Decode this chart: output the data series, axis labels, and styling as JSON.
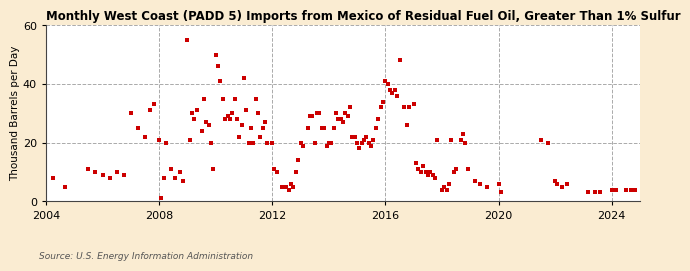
{
  "title": "Monthly West Coast (PADD 5) Imports from Mexico of Residual Fuel Oil, Greater Than 1% Sulfur",
  "ylabel": "Thousand Barrels per Day",
  "source": "Source: U.S. Energy Information Administration",
  "background_color": "#faecd2",
  "plot_background": "#ffffff",
  "marker_color": "#cc0000",
  "xlim": [
    2004,
    2025
  ],
  "ylim": [
    0,
    60
  ],
  "yticks": [
    0,
    20,
    40,
    60
  ],
  "xticks": [
    2004,
    2008,
    2012,
    2016,
    2020,
    2024
  ],
  "data_x": [
    2004.25,
    2004.67,
    2005.5,
    2005.75,
    2006.0,
    2006.25,
    2006.5,
    2006.75,
    2007.0,
    2007.25,
    2007.5,
    2007.67,
    2007.83,
    2008.0,
    2008.08,
    2008.17,
    2008.25,
    2008.42,
    2008.58,
    2008.75,
    2008.83,
    2009.0,
    2009.08,
    2009.17,
    2009.25,
    2009.33,
    2009.5,
    2009.58,
    2009.67,
    2009.75,
    2009.83,
    2009.92,
    2010.0,
    2010.08,
    2010.17,
    2010.25,
    2010.33,
    2010.42,
    2010.5,
    2010.58,
    2010.67,
    2010.75,
    2010.83,
    2010.92,
    2011.0,
    2011.08,
    2011.17,
    2011.25,
    2011.33,
    2011.42,
    2011.5,
    2011.58,
    2011.67,
    2011.75,
    2011.83,
    2012.0,
    2012.08,
    2012.17,
    2012.33,
    2012.5,
    2012.58,
    2012.67,
    2012.75,
    2012.83,
    2012.92,
    2013.0,
    2013.08,
    2013.25,
    2013.33,
    2013.42,
    2013.5,
    2013.58,
    2013.67,
    2013.75,
    2013.83,
    2013.92,
    2014.0,
    2014.08,
    2014.17,
    2014.25,
    2014.33,
    2014.42,
    2014.5,
    2014.58,
    2014.67,
    2014.75,
    2014.83,
    2014.92,
    2015.0,
    2015.08,
    2015.17,
    2015.25,
    2015.33,
    2015.42,
    2015.5,
    2015.58,
    2015.67,
    2015.75,
    2015.83,
    2015.92,
    2016.0,
    2016.08,
    2016.17,
    2016.25,
    2016.33,
    2016.42,
    2016.5,
    2016.67,
    2016.75,
    2016.83,
    2017.0,
    2017.08,
    2017.17,
    2017.25,
    2017.33,
    2017.42,
    2017.5,
    2017.58,
    2017.67,
    2017.75,
    2017.83,
    2018.0,
    2018.08,
    2018.17,
    2018.25,
    2018.33,
    2018.42,
    2018.5,
    2018.67,
    2018.75,
    2018.83,
    2018.92,
    2019.17,
    2019.33,
    2019.58,
    2020.0,
    2020.08,
    2021.5,
    2021.75,
    2022.0,
    2022.08,
    2022.25,
    2022.42,
    2023.17,
    2023.42,
    2023.58,
    2024.0,
    2024.17,
    2024.5,
    2024.67,
    2024.83
  ],
  "data_y": [
    8,
    5,
    11,
    10,
    9,
    8,
    10,
    9,
    30,
    25,
    22,
    31,
    33,
    21,
    1,
    8,
    20,
    11,
    8,
    10,
    7,
    55,
    21,
    30,
    28,
    31,
    24,
    35,
    27,
    26,
    20,
    11,
    50,
    46,
    41,
    35,
    28,
    29,
    28,
    30,
    35,
    28,
    22,
    26,
    42,
    31,
    20,
    25,
    20,
    35,
    30,
    22,
    25,
    27,
    20,
    20,
    11,
    10,
    5,
    5,
    4,
    6,
    5,
    10,
    14,
    20,
    19,
    25,
    29,
    29,
    20,
    30,
    30,
    25,
    25,
    19,
    20,
    20,
    25,
    30,
    28,
    28,
    27,
    30,
    29,
    32,
    22,
    22,
    20,
    18,
    20,
    21,
    22,
    20,
    19,
    21,
    25,
    28,
    32,
    34,
    41,
    40,
    38,
    37,
    38,
    36,
    48,
    32,
    26,
    32,
    33,
    13,
    11,
    10,
    12,
    10,
    9,
    10,
    9,
    8,
    21,
    4,
    5,
    4,
    6,
    21,
    10,
    11,
    21,
    23,
    20,
    11,
    7,
    6,
    5,
    6,
    3,
    21,
    20,
    7,
    6,
    5,
    6,
    3,
    3,
    3,
    4,
    4,
    4,
    4,
    4
  ],
  "title_fontsize": 8.5,
  "ylabel_fontsize": 7.5,
  "tick_fontsize": 8,
  "source_fontsize": 6.5
}
